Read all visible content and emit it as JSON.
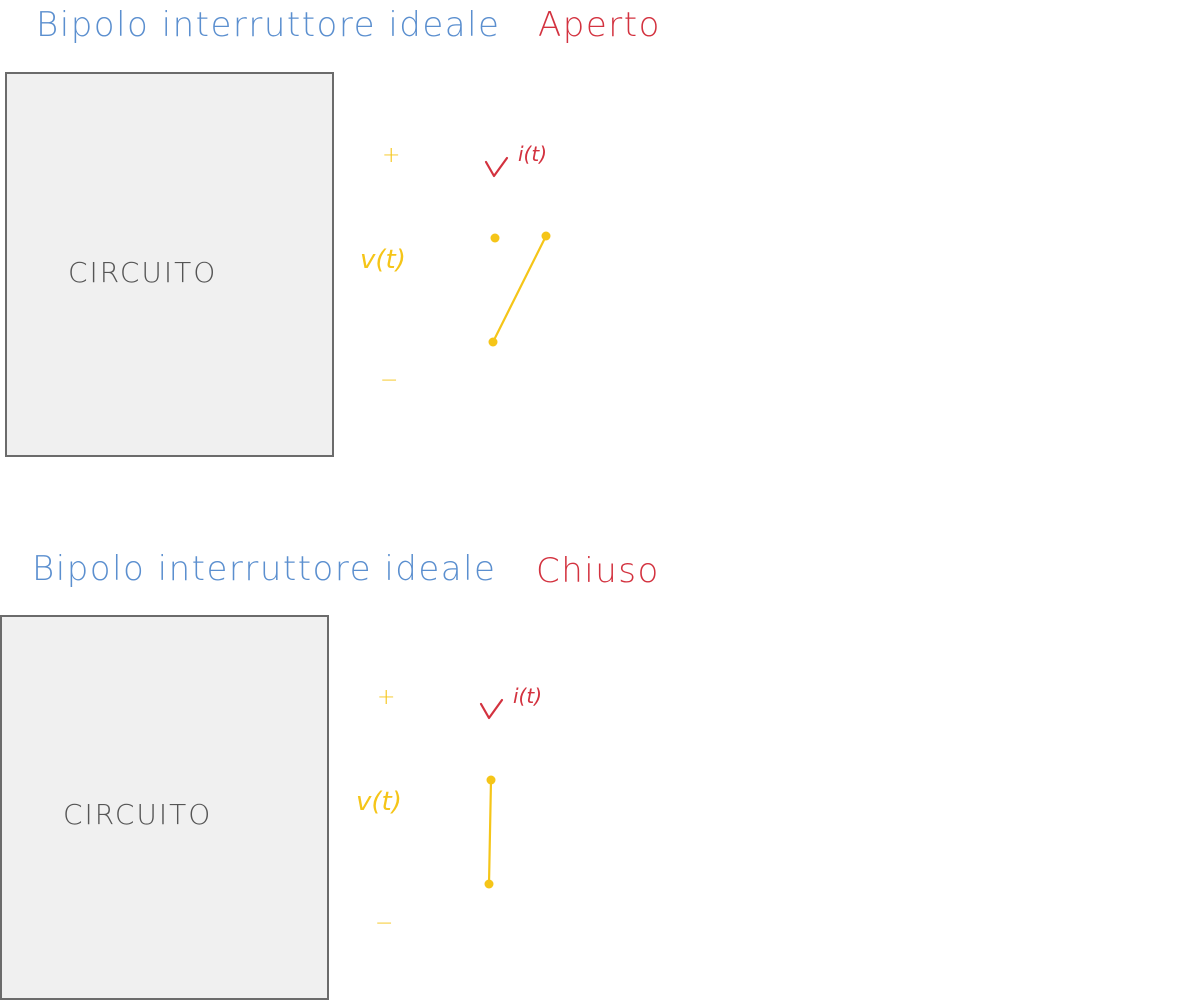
{
  "colors": {
    "title_blue": "#5b8fcf",
    "state_red": "#d3323f",
    "voltage_yellow": "#f5c518",
    "box_fill": "#f0f0f0",
    "box_stroke": "#6b6b6b",
    "label_gray": "#555555"
  },
  "open_switch": {
    "title": "Bipolo interruttore ideale",
    "state": "Aperto",
    "box_label": "CIRCUITO",
    "plus": "+",
    "minus": "−",
    "voltage_label": "v(t)",
    "current_label": "i(t)",
    "state_value": "open"
  },
  "closed_switch": {
    "title": "Bipolo interruttore ideale",
    "state": "Chiuso",
    "box_label": "CIRCUITO",
    "plus": "+",
    "minus": "−",
    "voltage_label": "v(t)",
    "current_label": "i(t)",
    "state_value": "closed"
  }
}
